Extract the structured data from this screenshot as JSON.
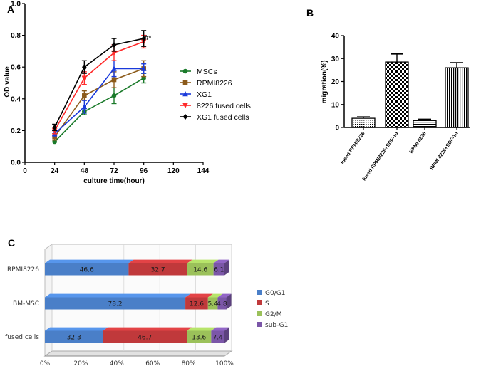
{
  "chart_data": [
    {
      "type": "line",
      "panel": "A",
      "xlabel": "culture time(hour)",
      "ylabel": "OD value",
      "x_ticks": [
        0,
        24,
        48,
        72,
        96,
        120,
        144
      ],
      "y_ticks": [
        "0.0",
        "0.2",
        "0.4",
        "0.6",
        "0.8",
        "1.0"
      ],
      "xlim": [
        0,
        144
      ],
      "ylim": [
        0,
        1.0
      ],
      "annotation": "#*",
      "series": [
        {
          "name": "MSCs",
          "color": "#1a7a2a",
          "marker": "circle",
          "x": [
            24,
            48,
            72,
            96
          ],
          "y": [
            0.13,
            0.32,
            0.42,
            0.53
          ],
          "err": [
            0.0,
            0.02,
            0.05,
            0.03
          ]
        },
        {
          "name": "RPMI8226",
          "color": "#8b5a1a",
          "marker": "square",
          "x": [
            24,
            48,
            72,
            96
          ],
          "y": [
            0.16,
            0.42,
            0.52,
            0.59
          ],
          "err": [
            0.02,
            0.03,
            0.05,
            0.05
          ]
        },
        {
          "name": "XG1",
          "color": "#1a3adb",
          "marker": "triangle",
          "x": [
            24,
            48,
            72,
            96
          ],
          "y": [
            0.18,
            0.35,
            0.59,
            0.59
          ],
          "err": [
            0.02,
            0.04,
            0.05,
            0.03
          ]
        },
        {
          "name": "8226 fused cells",
          "color": "#ff2a2a",
          "marker": "triangle-down",
          "x": [
            24,
            48,
            72,
            96
          ],
          "y": [
            0.2,
            0.53,
            0.69,
            0.76
          ],
          "err": [
            0.02,
            0.04,
            0.05,
            0.04
          ]
        },
        {
          "name": "XG1 fused cells",
          "color": "#000000",
          "marker": "diamond",
          "x": [
            24,
            48,
            72,
            96
          ],
          "y": [
            0.22,
            0.6,
            0.74,
            0.78
          ],
          "err": [
            0.02,
            0.04,
            0.04,
            0.05
          ]
        }
      ]
    },
    {
      "type": "bar",
      "panel": "B",
      "ylabel": "migration(%)",
      "y_ticks": [
        "0",
        "10",
        "20",
        "30",
        "40"
      ],
      "ylim": [
        0,
        40
      ],
      "categories": [
        "fused RPMI8226",
        "fused RPMI8226+SDF-1α",
        "RPMI 8226",
        "RPMI 8226+SDF-1α"
      ],
      "values": [
        4,
        28.5,
        3,
        26
      ],
      "err": [
        0.6,
        3.5,
        0.6,
        2.2
      ],
      "patterns": [
        "dots",
        "checker",
        "hlines",
        "vlines"
      ]
    },
    {
      "type": "bar",
      "orientation": "horizontal-stacked-3d",
      "panel": "C",
      "categories": [
        "RPMI8226",
        "BM-MSC",
        "fused cells"
      ],
      "x_ticks": [
        "0%",
        "20%",
        "40%",
        "60%",
        "80%",
        "100%"
      ],
      "series": [
        {
          "name": "G0/G1",
          "color": "#4a7fc8",
          "values": [
            46.6,
            78.2,
            32.3
          ]
        },
        {
          "name": "S",
          "color": "#c0393b",
          "values": [
            32.7,
            12.6,
            46.7
          ]
        },
        {
          "name": "G2/M",
          "color": "#9bc15a",
          "values": [
            14.6,
            5.4,
            13.6
          ]
        },
        {
          "name": "sub-G1",
          "color": "#7b56a8",
          "values": [
            6.1,
            4.8,
            7.4
          ]
        }
      ],
      "value_labels": [
        [
          "46.6",
          "32.7",
          "14.6",
          "6.1"
        ],
        [
          "78.2",
          "12.6",
          "5.4",
          "4.8"
        ],
        [
          "32.3",
          "46.7",
          "13.6",
          "7.4"
        ]
      ]
    }
  ]
}
